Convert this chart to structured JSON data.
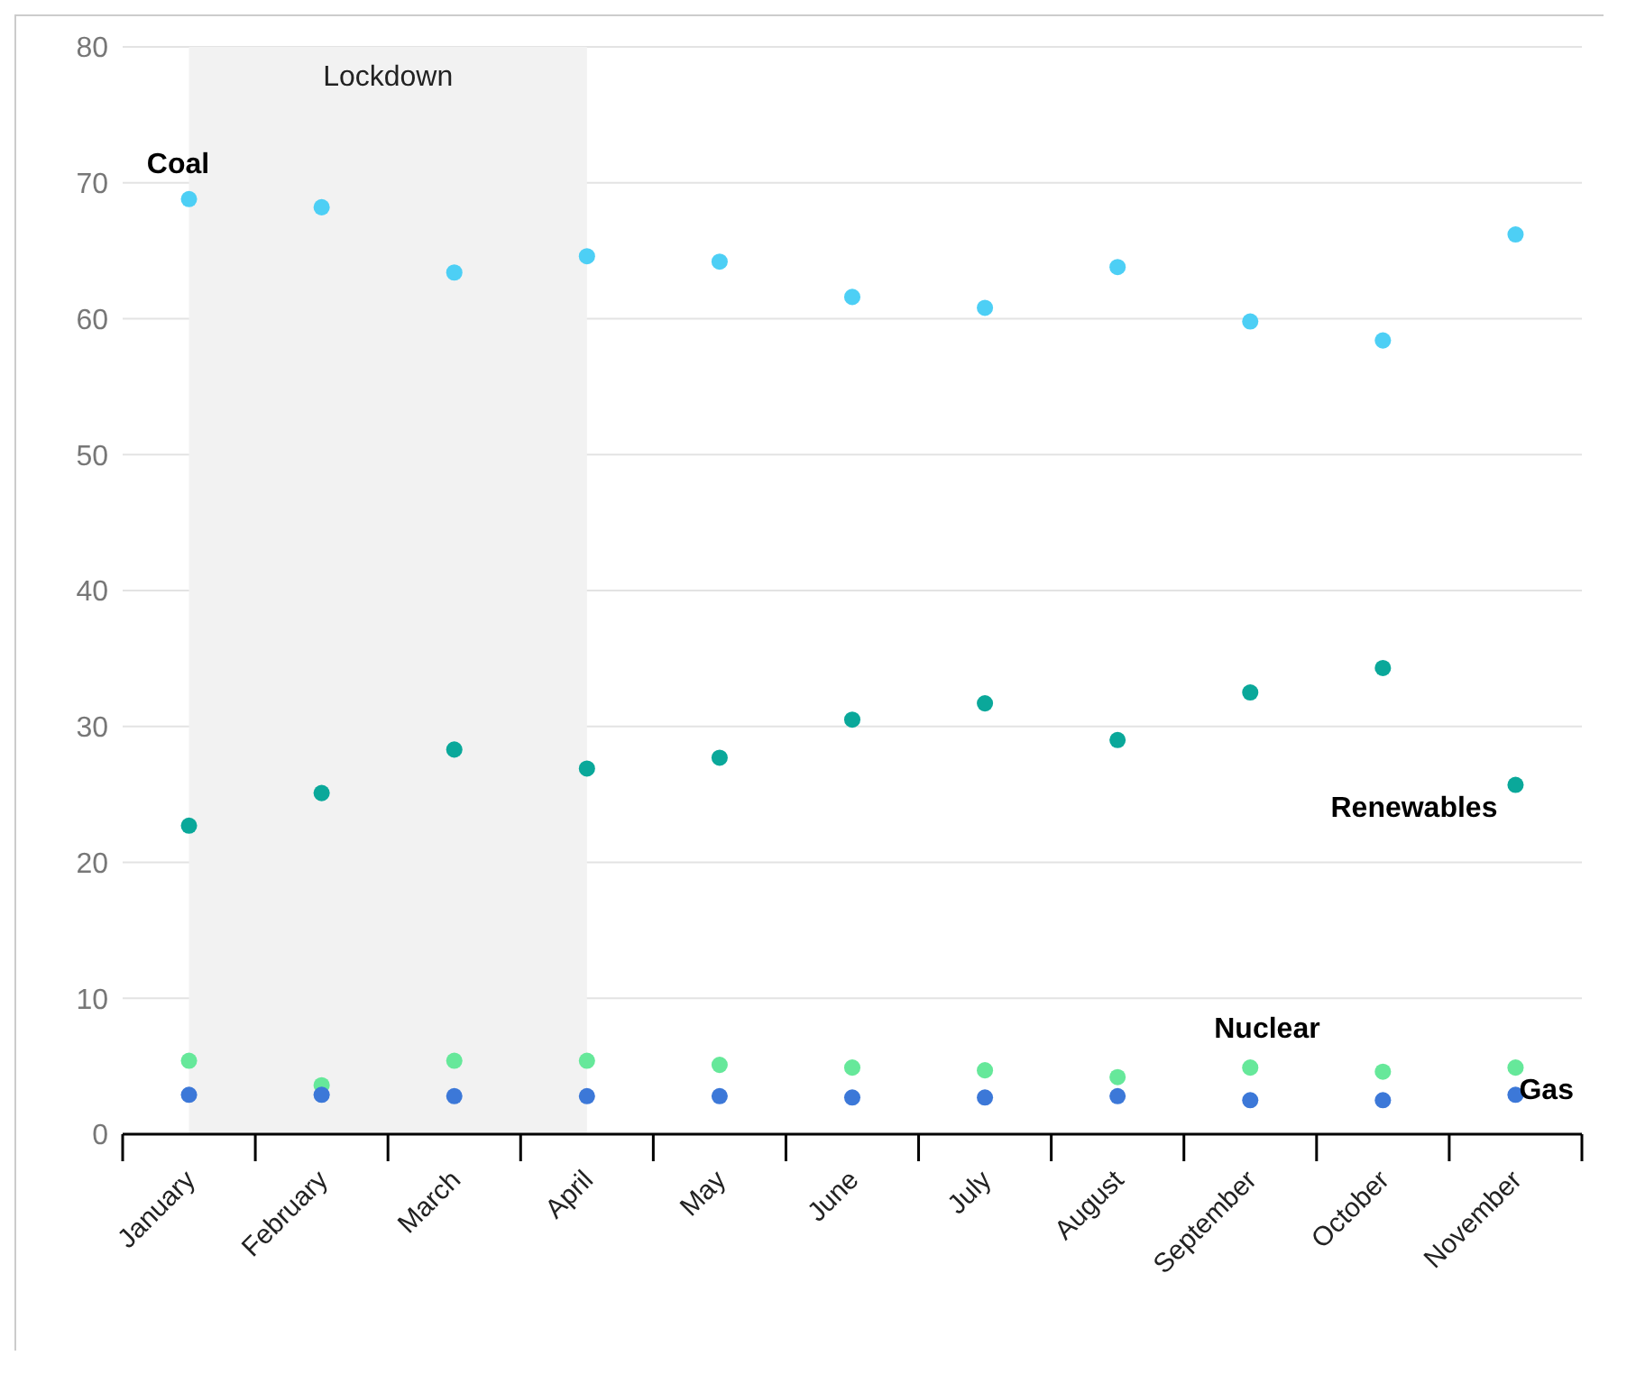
{
  "chart_data": {
    "type": "scatter",
    "categories": [
      "January",
      "February",
      "March",
      "April",
      "May",
      "June",
      "July",
      "August",
      "September",
      "October",
      "November"
    ],
    "series": [
      {
        "name": "Coal",
        "color": "#4dcff5",
        "values": [
          68.8,
          68.2,
          63.4,
          64.6,
          64.2,
          61.6,
          60.8,
          63.8,
          59.8,
          58.4,
          66.2
        ]
      },
      {
        "name": "Renewables",
        "color": "#0aa89a",
        "values": [
          22.7,
          25.1,
          28.3,
          26.9,
          27.7,
          30.5,
          31.7,
          29.0,
          32.5,
          34.3,
          25.7
        ]
      },
      {
        "name": "Nuclear",
        "color": "#66e89a",
        "values": [
          5.4,
          3.6,
          5.4,
          5.4,
          5.1,
          4.9,
          4.7,
          4.2,
          4.9,
          4.6,
          4.9
        ]
      },
      {
        "name": "Gas",
        "color": "#3c78d8",
        "values": [
          2.9,
          2.9,
          2.8,
          2.8,
          2.8,
          2.7,
          2.7,
          2.8,
          2.5,
          2.5,
          2.9
        ]
      }
    ],
    "ylim": [
      0,
      80
    ],
    "yticks": [
      0,
      10,
      20,
      30,
      40,
      50,
      60,
      70,
      80
    ],
    "grid": "y",
    "marker": "circle",
    "bands": [
      {
        "axis": "x",
        "from": "January",
        "to": "April",
        "label": "Lockdown",
        "color": "#f2f2f2"
      }
    ]
  }
}
